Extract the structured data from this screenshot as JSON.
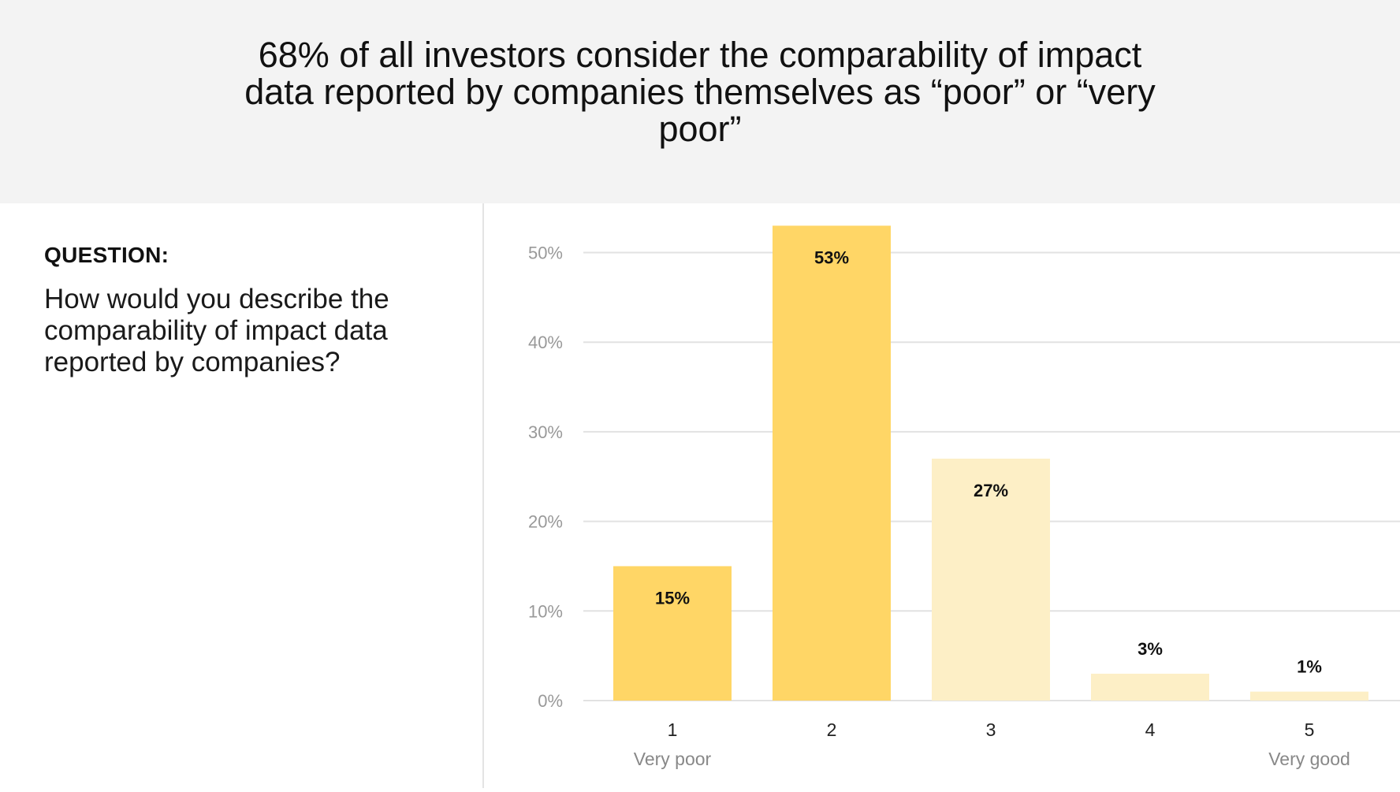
{
  "header": {
    "title": "68% of all investors consider the comparability of impact data reported by companies themselves as “poor” or “very poor”"
  },
  "question": {
    "label": "QUESTION:",
    "text": "How would you describe the comparability of impact data reported by companies?"
  },
  "colors": {
    "header_bg": "#f3f3f3",
    "bar_strong": "#ffd666",
    "bar_light": "#fdefc6"
  },
  "chart_data": {
    "type": "bar",
    "categories": [
      "1",
      "2",
      "3",
      "4",
      "5"
    ],
    "category_sublabels": [
      "Very poor",
      "",
      "",
      "",
      "Very good"
    ],
    "values": [
      15,
      53,
      27,
      3,
      1
    ],
    "value_labels": [
      "15%",
      "53%",
      "27%",
      "3%",
      "1%"
    ],
    "bar_tone": [
      "strong",
      "strong",
      "light",
      "light",
      "light"
    ],
    "ylim": [
      0,
      50
    ],
    "yticks": [
      0,
      10,
      20,
      30,
      40,
      50
    ],
    "ytick_labels": [
      "0%",
      "10%",
      "20%",
      "30%",
      "40%",
      "50%"
    ],
    "grid": true,
    "title": "",
    "xlabel": "",
    "ylabel": ""
  }
}
